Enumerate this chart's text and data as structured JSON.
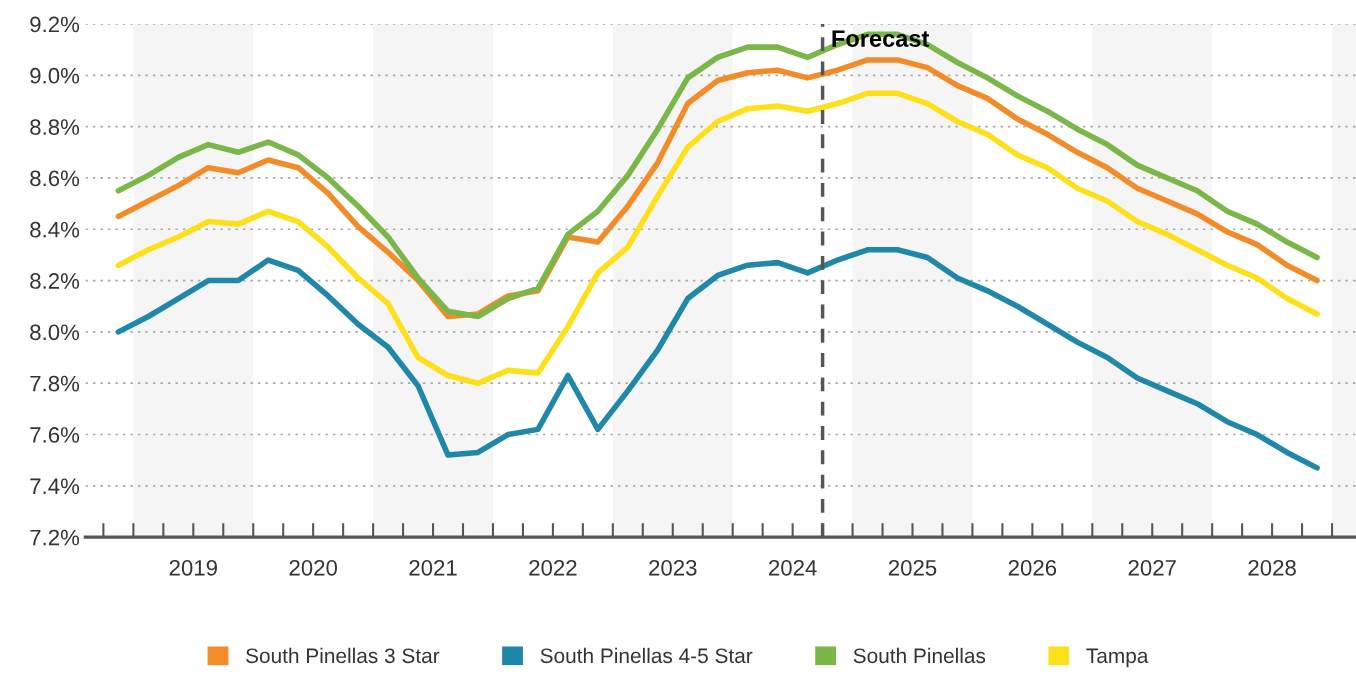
{
  "chart_data": {
    "type": "line",
    "x": [
      2018.875,
      2019.125,
      2019.375,
      2019.625,
      2019.875,
      2020.125,
      2020.375,
      2020.625,
      2020.875,
      2021.125,
      2021.375,
      2021.625,
      2021.875,
      2022.125,
      2022.375,
      2022.625,
      2022.875,
      2023.125,
      2023.375,
      2023.625,
      2023.875,
      2024.125,
      2024.375,
      2024.625,
      2024.875,
      2025.125,
      2025.375,
      2025.625,
      2025.875,
      2026.125,
      2026.375,
      2026.625,
      2026.875,
      2027.125,
      2027.375,
      2027.625,
      2027.875,
      2028.125,
      2028.375,
      2028.625,
      2028.875
    ],
    "series": [
      {
        "name": "South Pinellas 3 Star",
        "color": "#f28c28",
        "values": [
          8.45,
          8.51,
          8.57,
          8.64,
          8.62,
          8.67,
          8.64,
          8.54,
          8.41,
          8.31,
          8.2,
          8.06,
          8.07,
          8.14,
          8.16,
          8.37,
          8.35,
          8.49,
          8.66,
          8.89,
          8.98,
          9.01,
          9.02,
          8.99,
          9.02,
          9.06,
          9.06,
          9.03,
          8.96,
          8.91,
          8.83,
          8.77,
          8.7,
          8.64,
          8.56,
          8.51,
          8.46,
          8.39,
          8.34,
          8.26,
          8.2
        ]
      },
      {
        "name": "South Pinellas 4-5 Star",
        "color": "#1f88a8",
        "values": [
          8.0,
          8.06,
          8.13,
          8.2,
          8.2,
          8.28,
          8.24,
          8.14,
          8.03,
          7.94,
          7.79,
          7.52,
          7.53,
          7.6,
          7.62,
          7.83,
          7.62,
          7.77,
          7.93,
          8.13,
          8.22,
          8.26,
          8.27,
          8.23,
          8.28,
          8.32,
          8.32,
          8.29,
          8.21,
          8.16,
          8.1,
          8.03,
          7.96,
          7.9,
          7.82,
          7.77,
          7.72,
          7.65,
          7.6,
          7.53,
          7.47
        ]
      },
      {
        "name": "South Pinellas",
        "color": "#7ab648",
        "values": [
          8.55,
          8.61,
          8.68,
          8.73,
          8.7,
          8.74,
          8.69,
          8.6,
          8.49,
          8.37,
          8.21,
          8.08,
          8.06,
          8.13,
          8.17,
          8.38,
          8.47,
          8.61,
          8.79,
          8.99,
          9.07,
          9.11,
          9.11,
          9.07,
          9.12,
          9.16,
          9.16,
          9.12,
          9.05,
          8.99,
          8.92,
          8.86,
          8.79,
          8.73,
          8.65,
          8.6,
          8.55,
          8.47,
          8.42,
          8.35,
          8.29
        ]
      },
      {
        "name": "Tampa",
        "color": "#fde01a",
        "values": [
          8.26,
          8.32,
          8.37,
          8.43,
          8.42,
          8.47,
          8.43,
          8.33,
          8.21,
          8.11,
          7.9,
          7.83,
          7.8,
          7.85,
          7.84,
          8.02,
          8.23,
          8.33,
          8.53,
          8.72,
          8.82,
          8.87,
          8.88,
          8.86,
          8.89,
          8.93,
          8.93,
          8.89,
          8.82,
          8.77,
          8.69,
          8.64,
          8.56,
          8.51,
          8.43,
          8.38,
          8.32,
          8.26,
          8.21,
          8.13,
          8.07
        ]
      }
    ],
    "xlim": [
      2018.6,
      2029.2
    ],
    "xticks": [
      {
        "value": 2018.75,
        "label": null
      },
      {
        "value": 2019,
        "label": null
      },
      {
        "value": 2019.25,
        "label": null
      },
      {
        "value": 2019.5,
        "label": "2019"
      },
      {
        "value": 2019.75,
        "label": null
      },
      {
        "value": 2020,
        "label": null
      },
      {
        "value": 2020.25,
        "label": null
      },
      {
        "value": 2020.5,
        "label": "2020"
      },
      {
        "value": 2020.75,
        "label": null
      },
      {
        "value": 2021,
        "label": null
      },
      {
        "value": 2021.25,
        "label": null
      },
      {
        "value": 2021.5,
        "label": "2021"
      },
      {
        "value": 2021.75,
        "label": null
      },
      {
        "value": 2022,
        "label": null
      },
      {
        "value": 2022.25,
        "label": null
      },
      {
        "value": 2022.5,
        "label": "2022"
      },
      {
        "value": 2022.75,
        "label": null
      },
      {
        "value": 2023,
        "label": null
      },
      {
        "value": 2023.25,
        "label": null
      },
      {
        "value": 2023.5,
        "label": "2023"
      },
      {
        "value": 2023.75,
        "label": null
      },
      {
        "value": 2024,
        "label": null
      },
      {
        "value": 2024.25,
        "label": null
      },
      {
        "value": 2024.5,
        "label": "2024"
      },
      {
        "value": 2024.75,
        "label": null
      },
      {
        "value": 2025,
        "label": null
      },
      {
        "value": 2025.25,
        "label": null
      },
      {
        "value": 2025.5,
        "label": "2025"
      },
      {
        "value": 2025.75,
        "label": null
      },
      {
        "value": 2026,
        "label": null
      },
      {
        "value": 2026.25,
        "label": null
      },
      {
        "value": 2026.5,
        "label": "2026"
      },
      {
        "value": 2026.75,
        "label": null
      },
      {
        "value": 2027,
        "label": null
      },
      {
        "value": 2027.25,
        "label": null
      },
      {
        "value": 2027.5,
        "label": "2027"
      },
      {
        "value": 2027.75,
        "label": null
      },
      {
        "value": 2028,
        "label": null
      },
      {
        "value": 2028.25,
        "label": null
      },
      {
        "value": 2028.5,
        "label": "2028"
      },
      {
        "value": 2028.75,
        "label": null
      },
      {
        "value": 2029,
        "label": null
      }
    ],
    "ylim": [
      7.2,
      9.2
    ],
    "yticks": [
      {
        "value": 7.2,
        "label": "7.2%"
      },
      {
        "value": 7.4,
        "label": "7.4%"
      },
      {
        "value": 7.6,
        "label": "7.6%"
      },
      {
        "value": 7.8,
        "label": "7.8%"
      },
      {
        "value": 8.0,
        "label": "8.0%"
      },
      {
        "value": 8.2,
        "label": "8.2%"
      },
      {
        "value": 8.4,
        "label": "8.4%"
      },
      {
        "value": 8.6,
        "label": "8.6%"
      },
      {
        "value": 8.8,
        "label": "8.8%"
      },
      {
        "value": 9.0,
        "label": "9.0%"
      },
      {
        "value": 9.2,
        "label": "9.2%"
      }
    ],
    "grid": "y",
    "legend": "bottom",
    "marker": "none",
    "line_style": "solid",
    "ref_lines": [
      {
        "axis": "x",
        "value": 2024.75,
        "label": "Forecast",
        "color": "#555555",
        "line_style": "dashed"
      }
    ],
    "bands": [
      {
        "axis": "x",
        "from": 2019,
        "to": 2020,
        "color": "#f5f5f5"
      },
      {
        "axis": "x",
        "from": 2021,
        "to": 2022,
        "color": "#f5f5f5"
      },
      {
        "axis": "x",
        "from": 2023,
        "to": 2024,
        "color": "#f5f5f5"
      },
      {
        "axis": "x",
        "from": 2025,
        "to": 2026,
        "color": "#f5f5f5"
      },
      {
        "axis": "x",
        "from": 2027,
        "to": 2028,
        "color": "#f5f5f5"
      },
      {
        "axis": "x",
        "from": 2029,
        "to": 2029.2,
        "color": "#f5f5f5"
      }
    ]
  }
}
